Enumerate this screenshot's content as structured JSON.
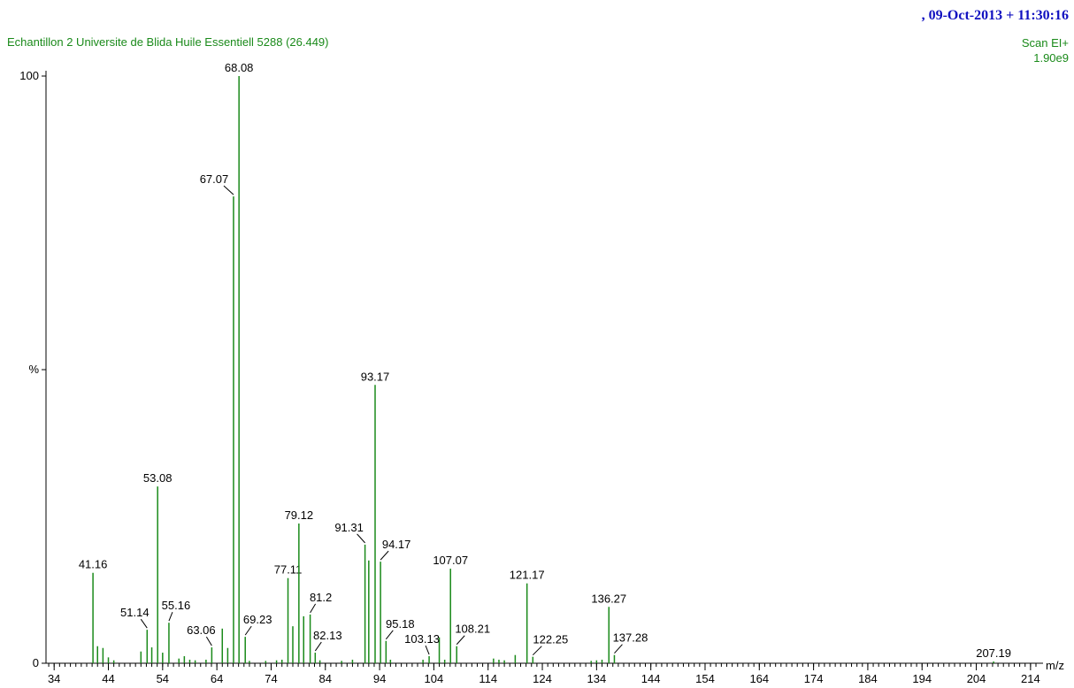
{
  "chart_data": {
    "type": "spectrum",
    "title": "Echantillon 2 Universite de Blida Huile Essentiell 5288 (26.449)",
    "timestamp": ", 09-Oct-2013 + 11:30:16",
    "scan": "Scan EI+",
    "intensity": "1.90e9",
    "x_label": "m/z",
    "color": "#1a8a1a",
    "x": [
      41.16,
      51.14,
      53.08,
      55.16,
      63.06,
      67.07,
      68.08,
      69.23,
      77.11,
      79.12,
      81.2,
      82.13,
      91.31,
      93.17,
      94.17,
      95.18,
      103.13,
      107.07,
      108.21,
      121.17,
      122.25,
      136.27,
      137.28,
      207.19
    ],
    "values": [
      15.4,
      5.7,
      30.1,
      6.9,
      2.7,
      79.5,
      100,
      4.5,
      14.5,
      23.8,
      8.3,
      1.8,
      20.2,
      47.4,
      17.3,
      3.8,
      1.2,
      16.1,
      2.9,
      13.6,
      1.1,
      9.6,
      1.4,
      0.3
    ],
    "minor_x": [
      42,
      43,
      44,
      45,
      50,
      52,
      54,
      57,
      58,
      59,
      60,
      62,
      65,
      66,
      70,
      73,
      75,
      76,
      78,
      80,
      83,
      87,
      89,
      92,
      96,
      102,
      105,
      106,
      115,
      116,
      117,
      119,
      133,
      134,
      135
    ],
    "minor_values": [
      2.9,
      2.6,
      1.0,
      0.5,
      2.0,
      2.7,
      1.8,
      0.8,
      1.2,
      0.6,
      0.5,
      0.6,
      5.9,
      2.6,
      0.4,
      0.4,
      0.5,
      0.6,
      6.3,
      8.0,
      0.5,
      0.4,
      0.6,
      17.5,
      0.6,
      0.6,
      4.4,
      0.6,
      0.8,
      0.6,
      0.5,
      1.4,
      0.4,
      0.5,
      0.6
    ],
    "xlim": [
      32.5,
      215
    ],
    "xticks": [
      34,
      44,
      54,
      64,
      74,
      84,
      94,
      104,
      114,
      124,
      134,
      144,
      154,
      164,
      174,
      184,
      194,
      204,
      214
    ],
    "xminor": 1,
    "ylim": [
      0,
      100
    ],
    "yticks": [
      0,
      {
        "value": 50,
        "label": "%"
      },
      100
    ]
  }
}
